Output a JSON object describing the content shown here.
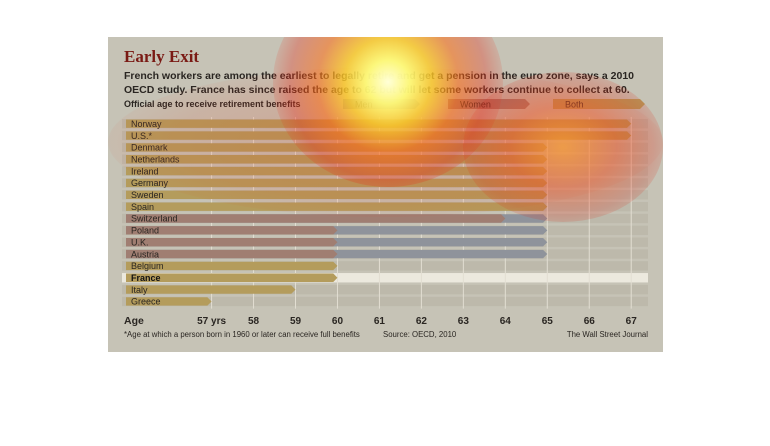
{
  "chart_data": {
    "type": "bar",
    "title": "Early Exit",
    "subtitle": "French workers are among the earliest to legally retire and get a pension in the euro zone, says a 2010 OECD study. France has since raised the age to 62 but will let some workers continue to collect at 60.",
    "legend": {
      "caption": "Official age to receive retirement benefits",
      "items": [
        {
          "label": "Men",
          "color": "#8f939b"
        },
        {
          "label": "Women",
          "color": "#a07e72"
        },
        {
          "label": "Both",
          "color": "#b49c5c"
        }
      ]
    },
    "xlabel": "Age",
    "xlim": [
      56.2,
      67.4
    ],
    "x_ticks": [
      {
        "value": 57,
        "label": "57 yrs"
      },
      {
        "value": 58,
        "label": "58"
      },
      {
        "value": 59,
        "label": "59"
      },
      {
        "value": 60,
        "label": "60"
      },
      {
        "value": 61,
        "label": "61"
      },
      {
        "value": 62,
        "label": "62"
      },
      {
        "value": 63,
        "label": "63"
      },
      {
        "value": 64,
        "label": "64"
      },
      {
        "value": 65,
        "label": "65"
      },
      {
        "value": 66,
        "label": "66"
      },
      {
        "value": 67,
        "label": "67"
      }
    ],
    "categories": [
      "Norway",
      "U.S.*",
      "Denmark",
      "Netherlands",
      "Ireland",
      "Germany",
      "Sweden",
      "Spain",
      "Switzerland",
      "Poland",
      "U.K.",
      "Austria",
      "Belgium",
      "France",
      "Italy",
      "Greece"
    ],
    "highlight": "France",
    "series": [
      {
        "name": "Both",
        "values": [
          67,
          67,
          65,
          65,
          65,
          65,
          65,
          65,
          null,
          null,
          null,
          null,
          60,
          60,
          59,
          57
        ]
      },
      {
        "name": "Women",
        "values": [
          null,
          null,
          null,
          null,
          null,
          null,
          null,
          null,
          64,
          60,
          60,
          60,
          null,
          null,
          null,
          null
        ]
      },
      {
        "name": "Men",
        "values": [
          null,
          null,
          null,
          null,
          null,
          null,
          null,
          null,
          65,
          65,
          65,
          65,
          null,
          null,
          null,
          null
        ]
      }
    ],
    "footnote": "*Age at which a person born in 1960 or later can receive full benefits",
    "source": "Source: OECD, 2010",
    "credit": "The Wall Street Journal"
  },
  "colors": {
    "background": "#c6c3b6",
    "row_band": "#bdb9ab",
    "highlight_row": "#ece9de",
    "title": "#7a1a14",
    "text": "#2a2622"
  }
}
